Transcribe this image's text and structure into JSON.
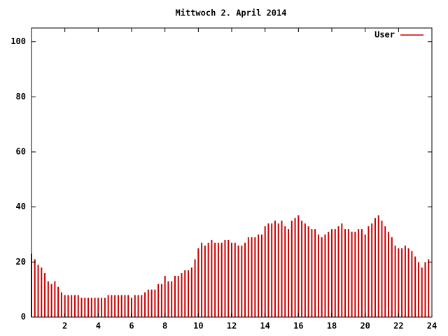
{
  "chart_data": {
    "type": "impulse",
    "title": "Mittwoch 2. April 2014",
    "x": [
      0,
      0.2,
      0.4,
      0.6,
      0.8,
      1,
      1.2,
      1.4,
      1.6,
      1.8,
      2,
      2.2,
      2.4,
      2.6,
      2.8,
      3,
      3.2,
      3.4,
      3.6,
      3.8,
      4,
      4.2,
      4.4,
      4.6,
      4.8,
      5,
      5.2,
      5.4,
      5.6,
      5.8,
      6,
      6.2,
      6.4,
      6.6,
      6.8,
      7,
      7.2,
      7.4,
      7.6,
      7.8,
      8,
      8.2,
      8.4,
      8.6,
      8.8,
      9,
      9.2,
      9.4,
      9.6,
      9.8,
      10,
      10.2,
      10.4,
      10.6,
      10.8,
      11,
      11.2,
      11.4,
      11.6,
      11.8,
      12,
      12.2,
      12.4,
      12.6,
      12.8,
      13,
      13.2,
      13.4,
      13.6,
      13.8,
      14,
      14.2,
      14.4,
      14.6,
      14.8,
      15,
      15.2,
      15.4,
      15.6,
      15.8,
      16,
      16.2,
      16.4,
      16.6,
      16.8,
      17,
      17.2,
      17.4,
      17.6,
      17.8,
      18,
      18.2,
      18.4,
      18.6,
      18.8,
      19,
      19.2,
      19.4,
      19.6,
      19.8,
      20,
      20.2,
      20.4,
      20.6,
      20.8,
      21,
      21.2,
      21.4,
      21.6,
      21.8,
      22,
      22.2,
      22.4,
      22.6,
      22.8,
      23,
      23.2,
      23.4,
      23.6,
      23.8
    ],
    "series": [
      {
        "name": "User",
        "color": "#cc0000",
        "values": [
          23,
          21,
          19,
          18,
          16,
          13,
          12,
          13,
          11,
          9,
          8,
          8,
          8,
          8,
          8,
          7,
          7,
          7,
          7,
          7,
          7,
          7,
          7,
          8,
          8,
          8,
          8,
          8,
          8,
          8,
          7,
          8,
          8,
          8,
          9,
          10,
          10,
          10,
          12,
          12,
          15,
          13,
          13,
          15,
          15,
          16,
          17,
          17,
          18,
          21,
          25,
          27,
          26,
          27,
          28,
          27,
          27,
          27,
          28,
          28,
          27,
          27,
          26,
          26,
          27,
          29,
          29,
          29,
          30,
          30,
          33,
          34,
          34,
          35,
          34,
          35,
          33,
          32,
          35,
          36,
          37,
          35,
          34,
          33,
          32,
          32,
          30,
          29,
          30,
          31,
          32,
          32,
          33,
          34,
          32,
          32,
          31,
          31,
          32,
          32,
          30,
          33,
          34,
          36,
          37,
          35,
          33,
          31,
          29,
          26,
          25,
          25,
          26,
          25,
          24,
          22,
          20,
          18,
          20,
          21
        ]
      }
    ],
    "xlim": [
      0,
      24
    ],
    "xticks": [
      2,
      4,
      6,
      8,
      10,
      12,
      14,
      16,
      18,
      20,
      22,
      24
    ],
    "ylim": [
      0,
      105
    ],
    "yticks": [
      0,
      20,
      40,
      60,
      80,
      100
    ],
    "legend": "top-right"
  }
}
